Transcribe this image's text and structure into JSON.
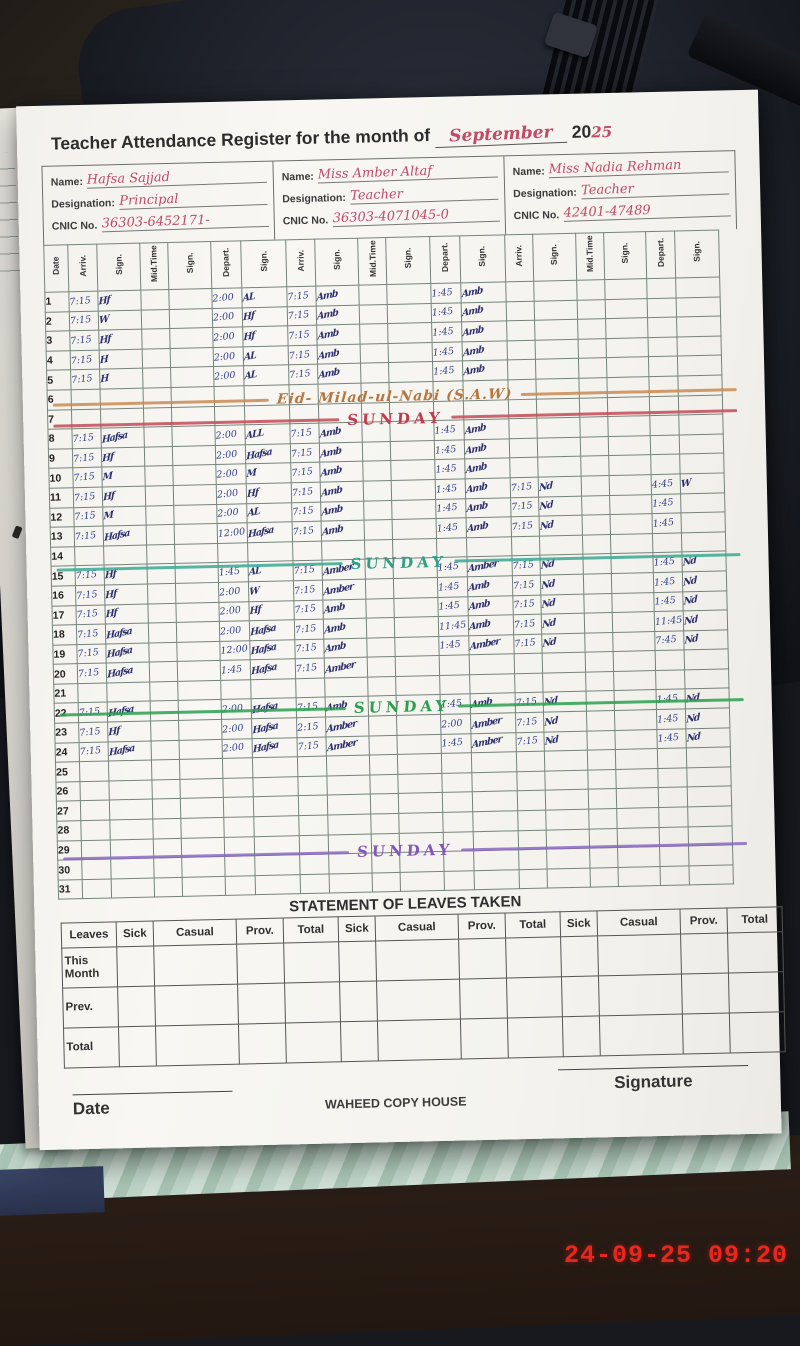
{
  "photo": {
    "timestamp": "24-09-25  09:20",
    "margin_digit": "0"
  },
  "page": {
    "title_printed": "Teacher Attendance Register for the month of",
    "title_month": "September",
    "title_year_printed": "20",
    "title_year_written": "25",
    "labels": {
      "name": "Name:",
      "designation": "Designation:",
      "cnic": "CNIC No."
    },
    "teachers": [
      {
        "name": "Hafsa Sajjad",
        "designation": "Principal",
        "cnic": "36303-6452171-"
      },
      {
        "name": "Miss Amber Altaf",
        "designation": "Teacher",
        "cnic": "36303-4071045-0"
      },
      {
        "name": "Miss Nadia Rehman",
        "designation": "Teacher",
        "cnic": "42401-47489"
      }
    ],
    "col_headers": [
      "Date",
      "Arriv.",
      "Sign.",
      "Mid.Time",
      "Sign.",
      "Depart.",
      "Sign.",
      "Arriv.",
      "Sign.",
      "Mid.Time",
      "Sign.",
      "Depart.",
      "Sign.",
      "Arriv.",
      "Sign.",
      "Mid.Time",
      "Sign.",
      "Depart.",
      "Sign."
    ],
    "rows": [
      {
        "d": "1",
        "c": [
          "7:15",
          "Hf",
          "",
          "",
          "2:00",
          "AL",
          "7:15",
          "Amb",
          "",
          "",
          "1:45",
          "Amb",
          "",
          "",
          "",
          "",
          "",
          ""
        ]
      },
      {
        "d": "2",
        "c": [
          "7:15",
          "W",
          "",
          "",
          "2:00",
          "Hf",
          "7:15",
          "Amb",
          "",
          "",
          "1:45",
          "Amb",
          "",
          "",
          "",
          "",
          "",
          ""
        ]
      },
      {
        "d": "3",
        "c": [
          "7:15",
          "Hf",
          "",
          "",
          "2:00",
          "Hf",
          "7:15",
          "Amb",
          "",
          "",
          "1:45",
          "Amb",
          "",
          "",
          "",
          "",
          "",
          ""
        ]
      },
      {
        "d": "4",
        "c": [
          "7:15",
          "H",
          "",
          "",
          "2:00",
          "AL",
          "7:15",
          "Amb",
          "",
          "",
          "1:45",
          "Amb",
          "",
          "",
          "",
          "",
          "",
          ""
        ]
      },
      {
        "d": "5",
        "c": [
          "7:15",
          "H",
          "",
          "",
          "2:00",
          "AL",
          "7:15",
          "Amb",
          "",
          "",
          "1:45",
          "Amb",
          "",
          "",
          "",
          "",
          "",
          ""
        ]
      },
      {
        "d": "6",
        "c": [
          "",
          "",
          "",
          "",
          "",
          "",
          "",
          "",
          "",
          "",
          "",
          "",
          "",
          "",
          "",
          "",
          "",
          ""
        ]
      },
      {
        "d": "7",
        "c": [
          "",
          "",
          "",
          "",
          "",
          "",
          "",
          "",
          "",
          "",
          "",
          "",
          "",
          "",
          "",
          "",
          "",
          ""
        ]
      },
      {
        "d": "8",
        "c": [
          "7:15",
          "Hafsa",
          "",
          "",
          "2:00",
          "ALL",
          "7:15",
          "Amb",
          "",
          "",
          "1:45",
          "Amb",
          "",
          "",
          "",
          "",
          "",
          ""
        ]
      },
      {
        "d": "9",
        "c": [
          "7:15",
          "Hf",
          "",
          "",
          "2:00",
          "Hafsa",
          "7:15",
          "Amb",
          "",
          "",
          "1:45",
          "Amb",
          "",
          "",
          "",
          "",
          "",
          ""
        ]
      },
      {
        "d": "10",
        "c": [
          "7:15",
          "M",
          "",
          "",
          "2:00",
          "M",
          "7:15",
          "Amb",
          "",
          "",
          "1:45",
          "Amb",
          "",
          "",
          "",
          "",
          "",
          ""
        ]
      },
      {
        "d": "11",
        "c": [
          "7:15",
          "Hf",
          "",
          "",
          "2:00",
          "Hf",
          "7:15",
          "Amb",
          "",
          "",
          "1:45",
          "Amb",
          "7:15",
          "Nd",
          "",
          "",
          "4:45",
          "W"
        ]
      },
      {
        "d": "12",
        "c": [
          "7:15",
          "M",
          "",
          "",
          "2:00",
          "AL",
          "7:15",
          "Amb",
          "",
          "",
          "1:45",
          "Amb",
          "7:15",
          "Nd",
          "",
          "",
          "1:45",
          ""
        ]
      },
      {
        "d": "13",
        "c": [
          "7:15",
          "Hafsa",
          "",
          "",
          "12:00",
          "Hafsa",
          "7:15",
          "Amb",
          "",
          "",
          "1:45",
          "Amb",
          "7:15",
          "Nd",
          "",
          "",
          "1:45",
          ""
        ]
      },
      {
        "d": "14",
        "c": [
          "",
          "",
          "",
          "",
          "",
          "",
          "",
          "",
          "",
          "",
          "",
          "",
          "",
          "",
          "",
          "",
          "",
          ""
        ]
      },
      {
        "d": "15",
        "c": [
          "7:15",
          "Hf",
          "",
          "",
          "1:45",
          "AL",
          "7:15",
          "Amber",
          "",
          "",
          "1:45",
          "Amber",
          "7:15",
          "Nd",
          "",
          "",
          "1:45",
          "Nd"
        ]
      },
      {
        "d": "16",
        "c": [
          "7:15",
          "Hf",
          "",
          "",
          "2:00",
          "W",
          "7:15",
          "Amber",
          "",
          "",
          "1:45",
          "Amb",
          "7:15",
          "Nd",
          "",
          "",
          "1:45",
          "Nd"
        ]
      },
      {
        "d": "17",
        "c": [
          "7:15",
          "Hf",
          "",
          "",
          "2:00",
          "Hf",
          "7:15",
          "Amb",
          "",
          "",
          "1:45",
          "Amb",
          "7:15",
          "Nd",
          "",
          "",
          "1:45",
          "Nd"
        ]
      },
      {
        "d": "18",
        "c": [
          "7:15",
          "Hafsa",
          "",
          "",
          "2:00",
          "Hafsa",
          "7:15",
          "Amb",
          "",
          "",
          "11:45",
          "Amb",
          "7:15",
          "Nd",
          "",
          "",
          "11:45",
          "Nd"
        ]
      },
      {
        "d": "19",
        "c": [
          "7:15",
          "Hafsa",
          "",
          "",
          "12:00",
          "Hafsa",
          "7:15",
          "Amb",
          "",
          "",
          "1:45",
          "Amber",
          "7:15",
          "Nd",
          "",
          "",
          "7:45",
          "Nd"
        ]
      },
      {
        "d": "20",
        "c": [
          "7:15",
          "Hafsa",
          "",
          "",
          "1:45",
          "Hafsa",
          "7:15",
          "Amber",
          "",
          "",
          "",
          "",
          "",
          "",
          "",
          "",
          "",
          ""
        ]
      },
      {
        "d": "21",
        "c": [
          "",
          "",
          "",
          "",
          "",
          "",
          "",
          "",
          "",
          "",
          "",
          "",
          "",
          "",
          "",
          "",
          "",
          ""
        ]
      },
      {
        "d": "22",
        "c": [
          "7:15",
          "Hafsa",
          "",
          "",
          "2:00",
          "Hafsa",
          "7:15",
          "Amb",
          "",
          "",
          "1:45",
          "Amb",
          "7:15",
          "Nd",
          "",
          "",
          "1:45",
          "Nd"
        ]
      },
      {
        "d": "23",
        "c": [
          "7:15",
          "Hf",
          "",
          "",
          "2:00",
          "Hafsa",
          "2:15",
          "Amber",
          "",
          "",
          "2:00",
          "Amber",
          "7:15",
          "Nd",
          "",
          "",
          "1:45",
          "Nd"
        ]
      },
      {
        "d": "24",
        "c": [
          "7:15",
          "Hafsa",
          "",
          "",
          "2:00",
          "Hafsa",
          "7:15",
          "Amber",
          "",
          "",
          "1:45",
          "Amber",
          "7:15",
          "Nd",
          "",
          "",
          "1:45",
          "Nd"
        ]
      },
      {
        "d": "25",
        "c": [
          "",
          "",
          "",
          "",
          "",
          "",
          "",
          "",
          "",
          "",
          "",
          "",
          "",
          "",
          "",
          "",
          "",
          ""
        ]
      },
      {
        "d": "26",
        "c": [
          "",
          "",
          "",
          "",
          "",
          "",
          "",
          "",
          "",
          "",
          "",
          "",
          "",
          "",
          "",
          "",
          "",
          ""
        ]
      },
      {
        "d": "27",
        "c": [
          "",
          "",
          "",
          "",
          "",
          "",
          "",
          "",
          "",
          "",
          "",
          "",
          "",
          "",
          "",
          "",
          "",
          ""
        ]
      },
      {
        "d": "28",
        "c": [
          "",
          "",
          "",
          "",
          "",
          "",
          "",
          "",
          "",
          "",
          "",
          "",
          "",
          "",
          "",
          "",
          "",
          ""
        ]
      },
      {
        "d": "29",
        "c": [
          "",
          "",
          "",
          "",
          "",
          "",
          "",
          "",
          "",
          "",
          "",
          "",
          "",
          "",
          "",
          "",
          "",
          ""
        ]
      },
      {
        "d": "30",
        "c": [
          "",
          "",
          "",
          "",
          "",
          "",
          "",
          "",
          "",
          "",
          "",
          "",
          "",
          "",
          "",
          "",
          "",
          ""
        ]
      },
      {
        "d": "31",
        "c": [
          "",
          "",
          "",
          "",
          "",
          "",
          "",
          "",
          "",
          "",
          "",
          "",
          "",
          "",
          "",
          "",
          "",
          ""
        ]
      }
    ],
    "specials": [
      {
        "row": 6,
        "text": "Eid- Milad-ul-Nabi (S.A.W)",
        "color": "#b5763f",
        "line": "#c98a52",
        "kind": "eid"
      },
      {
        "row": 7,
        "text": "SUNDAY",
        "color": "#c13a4e",
        "line": "#c34a57",
        "kind": "sunday"
      },
      {
        "row": 14,
        "text": "SUNDAY",
        "color": "#2f9f88",
        "line": "#3aa893",
        "kind": "sunday"
      },
      {
        "row": 21,
        "text": "SUNDAY",
        "color": "#2aa04f",
        "line": "#2aa04f",
        "kind": "sunday"
      },
      {
        "row": 28,
        "text": "SUNDAY",
        "color": "#8059b8",
        "line": "#8a68c0",
        "kind": "sunday"
      }
    ],
    "leaves": {
      "title": "STATEMENT OF LEAVES TAKEN",
      "headers": [
        "Leaves",
        "Sick",
        "Casual",
        "Prov.",
        "Total",
        "Sick",
        "Casual",
        "Prov.",
        "Total",
        "Sick",
        "Casual",
        "Prov.",
        "Total"
      ],
      "row_labels": [
        "This Month",
        "Prev.",
        "Total"
      ]
    },
    "footer": {
      "date_label": "Date",
      "press_name": "WAHEED COPY HOUSE",
      "signature_label": "Signature"
    }
  }
}
